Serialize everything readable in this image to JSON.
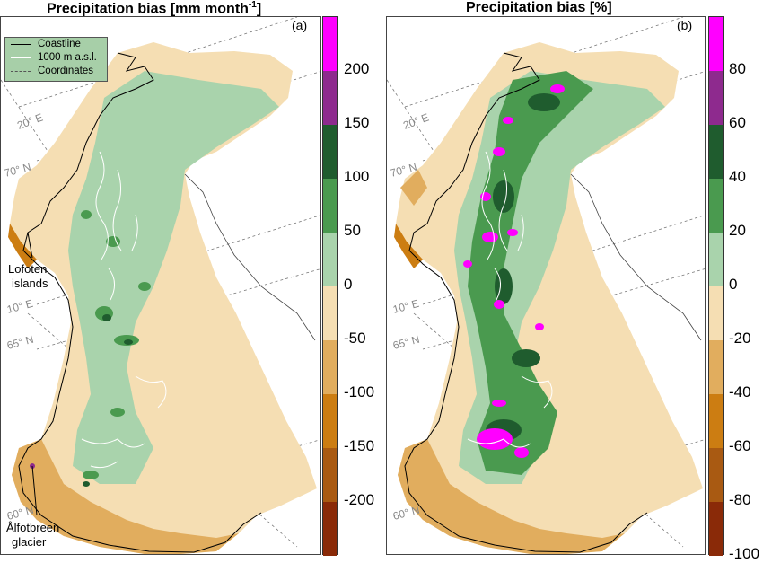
{
  "titles": {
    "a_main": "Precipitation bias [mm month",
    "a_sup": "-1",
    "a_end": "]",
    "b": "Precipitation bias [%]"
  },
  "panel_labels": {
    "a": "(a)",
    "b": "(b)"
  },
  "legend": {
    "items": [
      {
        "label": "Coastline",
        "color": "#000000",
        "style": "solid"
      },
      {
        "label": "1000 m a.s.l.",
        "color": "#ffffff",
        "style": "solid"
      },
      {
        "label": "Coordinates",
        "color": "#555555",
        "style": "dashed"
      }
    ]
  },
  "annotations": {
    "lofoten_1": "Lofoten",
    "lofoten_2": "islands",
    "alfotbreen_1": "Ålfotbreen",
    "alfotbreen_2": "glacier"
  },
  "coordinates": {
    "a": {
      "lon20": "20° E",
      "lat70": "70° N",
      "lon10": "10° E",
      "lat65": "65° N",
      "lat60": "60° N"
    },
    "b": {
      "lon20": "20° E",
      "lat70": "70° N",
      "lon10": "10° E",
      "lat65": "65° N",
      "lat60": "60° N"
    }
  },
  "colorbar_a": {
    "colors": [
      "#ff00ff",
      "#8e2a8e",
      "#1f5c2e",
      "#4a9a4f",
      "#a9d3ac",
      "#f5deb3",
      "#e1ad5e",
      "#cc7d12",
      "#a95a12",
      "#8a2a08"
    ],
    "ticks": [
      "200",
      "150",
      "100",
      "50",
      "0",
      "-50",
      "-100",
      "-150",
      "-200"
    ],
    "range": [
      -250,
      250
    ],
    "unit": "mm month-1"
  },
  "colorbar_b": {
    "colors": [
      "#ff00ff",
      "#8e2a8e",
      "#1f5c2e",
      "#4a9a4f",
      "#a9d3ac",
      "#f5deb3",
      "#e1ad5e",
      "#cc7d12",
      "#a95a12",
      "#8a2a08"
    ],
    "ticks": [
      "80",
      "60",
      "40",
      "20",
      "0",
      "-20",
      "-40",
      "-60",
      "-80",
      "-100"
    ],
    "range": [
      -100,
      100
    ],
    "unit": "%"
  }
}
